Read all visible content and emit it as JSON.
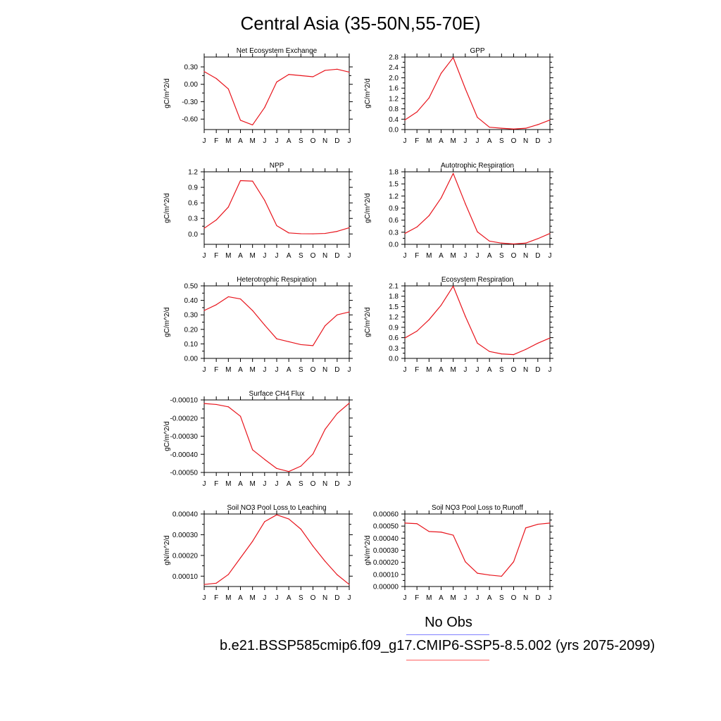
{
  "figure": {
    "title": "Central Asia (35-50N,55-70E)",
    "obs_label": "No Obs",
    "case_label": "b.e21.BSSP585cmip6.f09_g17.CMIP6-SSP5-8.5.002 (yrs 2075-2099)",
    "line_color": "#e8141c",
    "obs_color": "#8080ff",
    "model_color": "#ff6060"
  },
  "chart_data": [
    {
      "id": "nee",
      "type": "line",
      "title": "Net Ecosystem Exchange",
      "ylabel": "gC/m^2/d",
      "categories": [
        "J",
        "F",
        "M",
        "A",
        "M",
        "J",
        "J",
        "A",
        "S",
        "O",
        "N",
        "D",
        "J"
      ],
      "values": [
        0.22,
        0.1,
        -0.08,
        -0.62,
        -0.7,
        -0.4,
        0.04,
        0.17,
        0.15,
        0.13,
        0.24,
        0.26,
        0.21
      ],
      "ylim": [
        -0.78,
        0.47
      ],
      "yticks": [
        "0.30",
        "0.00",
        "-0.30",
        "-0.60"
      ],
      "ytick_values": [
        0.3,
        0.0,
        -0.3,
        -0.6
      ]
    },
    {
      "id": "gpp",
      "type": "line",
      "title": "GPP",
      "ylabel": "gC/m^2/d",
      "categories": [
        "J",
        "F",
        "M",
        "A",
        "M",
        "J",
        "J",
        "A",
        "S",
        "O",
        "N",
        "D",
        "J"
      ],
      "values": [
        0.37,
        0.68,
        1.22,
        2.17,
        2.78,
        1.58,
        0.47,
        0.09,
        0.05,
        0.02,
        0.05,
        0.19,
        0.37
      ],
      "ylim": [
        0.0,
        2.8
      ],
      "yticks": [
        "0.0",
        "0.4",
        "0.8",
        "1.2",
        "1.6",
        "2.0",
        "2.4",
        "2.8"
      ],
      "ytick_values": [
        0.0,
        0.4,
        0.8,
        1.2,
        1.6,
        2.0,
        2.4,
        2.8
      ]
    },
    {
      "id": "npp",
      "type": "line",
      "title": "NPP",
      "ylabel": "gC/m^2/d",
      "categories": [
        "J",
        "F",
        "M",
        "A",
        "M",
        "J",
        "J",
        "A",
        "S",
        "O",
        "N",
        "D",
        "J"
      ],
      "values": [
        0.11,
        0.27,
        0.52,
        1.03,
        1.02,
        0.65,
        0.16,
        0.02,
        0.005,
        0.003,
        0.01,
        0.05,
        0.12
      ],
      "ylim": [
        -0.2,
        1.2
      ],
      "yticks": [
        "0.0",
        "0.3",
        "0.6",
        "0.9",
        "1.2"
      ],
      "ytick_values": [
        0.0,
        0.3,
        0.6,
        0.9,
        1.2
      ]
    },
    {
      "id": "ar",
      "type": "line",
      "title": "Autotrophic Respiration",
      "ylabel": "gC/m^2/d",
      "categories": [
        "J",
        "F",
        "M",
        "A",
        "M",
        "J",
        "J",
        "A",
        "S",
        "O",
        "N",
        "D",
        "J"
      ],
      "values": [
        0.27,
        0.43,
        0.71,
        1.15,
        1.76,
        1.01,
        0.31,
        0.08,
        0.03,
        0.01,
        0.03,
        0.14,
        0.27
      ],
      "ylim": [
        0.0,
        1.8
      ],
      "yticks": [
        "0.0",
        "0.3",
        "0.6",
        "0.9",
        "1.2",
        "1.5",
        "1.8"
      ],
      "ytick_values": [
        0.0,
        0.3,
        0.6,
        0.9,
        1.2,
        1.5,
        1.8
      ]
    },
    {
      "id": "hr",
      "type": "line",
      "title": "Heterotrophic Respiration",
      "ylabel": "gC/m^2/d",
      "categories": [
        "J",
        "F",
        "M",
        "A",
        "M",
        "J",
        "J",
        "A",
        "S",
        "O",
        "N",
        "D",
        "J"
      ],
      "values": [
        0.33,
        0.37,
        0.425,
        0.41,
        0.33,
        0.23,
        0.135,
        0.115,
        0.095,
        0.088,
        0.225,
        0.3,
        0.32
      ],
      "ylim": [
        0.0,
        0.5
      ],
      "yticks": [
        "0.00",
        "0.10",
        "0.20",
        "0.30",
        "0.40",
        "0.50"
      ],
      "ytick_values": [
        0.0,
        0.1,
        0.2,
        0.3,
        0.4,
        0.5
      ]
    },
    {
      "id": "er",
      "type": "line",
      "title": "Ecosystem Respiration",
      "ylabel": "gC/m^2/d",
      "categories": [
        "J",
        "F",
        "M",
        "A",
        "M",
        "J",
        "J",
        "A",
        "S",
        "O",
        "N",
        "D",
        "J"
      ],
      "values": [
        0.59,
        0.79,
        1.12,
        1.54,
        2.09,
        1.22,
        0.44,
        0.2,
        0.13,
        0.11,
        0.26,
        0.44,
        0.59
      ],
      "ylim": [
        0.0,
        2.1
      ],
      "yticks": [
        "0.0",
        "0.3",
        "0.6",
        "0.9",
        "1.2",
        "1.5",
        "1.8",
        "2.1"
      ],
      "ytick_values": [
        0.0,
        0.3,
        0.6,
        0.9,
        1.2,
        1.5,
        1.8,
        2.1
      ]
    },
    {
      "id": "ch4",
      "type": "line",
      "title": "Surface CH4 Flux",
      "ylabel": "gC/m^2/d",
      "categories": [
        "J",
        "F",
        "M",
        "A",
        "M",
        "J",
        "J",
        "A",
        "S",
        "O",
        "N",
        "D",
        "J"
      ],
      "values": [
        -0.00012,
        -0.000125,
        -0.000138,
        -0.00019,
        -0.000375,
        -0.000428,
        -0.000478,
        -0.000495,
        -0.000465,
        -0.000398,
        -0.000262,
        -0.000175,
        -0.000118
      ],
      "ylim": [
        -0.0005,
        -0.0001
      ],
      "yticks": [
        "-0.00050",
        "-0.00040",
        "-0.00030",
        "-0.00020",
        "-0.00010"
      ],
      "ytick_values": [
        -0.0005,
        -0.0004,
        -0.0003,
        -0.0002,
        -0.0001
      ]
    },
    {
      "id": "leach",
      "type": "line",
      "title": "Soil NO3 Pool Loss to Leaching",
      "ylabel": "gN/m^2/d",
      "categories": [
        "J",
        "F",
        "M",
        "A",
        "M",
        "J",
        "J",
        "A",
        "S",
        "O",
        "N",
        "D",
        "J"
      ],
      "values": [
        6e-05,
        6.6e-05,
        0.000108,
        0.000188,
        0.000268,
        0.000363,
        0.000396,
        0.000376,
        0.000327,
        0.000245,
        0.000172,
        0.000107,
        6e-05
      ],
      "ylim": [
        5e-05,
        0.0004
      ],
      "yticks": [
        "0.00010",
        "0.00020",
        "0.00030",
        "0.00040"
      ],
      "ytick_values": [
        0.0001,
        0.0002,
        0.0003,
        0.0004
      ]
    },
    {
      "id": "runoff",
      "type": "line",
      "title": "Soil NO3 Pool Loss to Runoff",
      "ylabel": "gN/m^2/d",
      "categories": [
        "J",
        "F",
        "M",
        "A",
        "M",
        "J",
        "J",
        "A",
        "S",
        "O",
        "N",
        "D",
        "J"
      ],
      "values": [
        0.000525,
        0.00052,
        0.000455,
        0.00045,
        0.000425,
        0.000205,
        0.00011,
        9.5e-05,
        8.5e-05,
        0.000205,
        0.000485,
        0.000515,
        0.000525
      ],
      "ylim": [
        0.0,
        0.0006
      ],
      "yticks": [
        "0.00000",
        "0.00010",
        "0.00020",
        "0.00030",
        "0.00040",
        "0.00050",
        "0.00060"
      ],
      "ytick_values": [
        0.0,
        0.0001,
        0.0002,
        0.0003,
        0.0004,
        0.0005,
        0.0006
      ]
    }
  ]
}
